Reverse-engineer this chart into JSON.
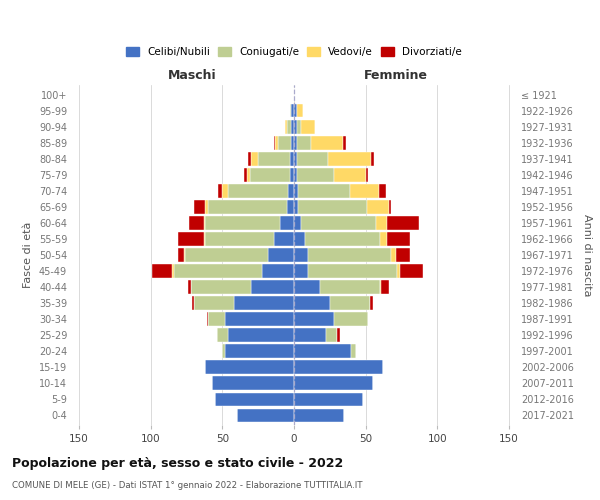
{
  "age_groups": [
    "0-4",
    "5-9",
    "10-14",
    "15-19",
    "20-24",
    "25-29",
    "30-34",
    "35-39",
    "40-44",
    "45-49",
    "50-54",
    "55-59",
    "60-64",
    "65-69",
    "70-74",
    "75-79",
    "80-84",
    "85-89",
    "90-94",
    "95-99",
    "100+"
  ],
  "birth_years": [
    "2017-2021",
    "2012-2016",
    "2007-2011",
    "2002-2006",
    "1997-2001",
    "1992-1996",
    "1987-1991",
    "1982-1986",
    "1977-1981",
    "1972-1976",
    "1967-1971",
    "1962-1966",
    "1957-1961",
    "1952-1956",
    "1947-1951",
    "1942-1946",
    "1937-1941",
    "1932-1936",
    "1927-1931",
    "1922-1926",
    "≤ 1921"
  ],
  "maschi": {
    "celibi": [
      40,
      55,
      57,
      62,
      48,
      46,
      48,
      42,
      30,
      22,
      18,
      14,
      10,
      5,
      4,
      3,
      3,
      2,
      2,
      2,
      0
    ],
    "coniugati": [
      0,
      0,
      0,
      0,
      2,
      8,
      12,
      28,
      42,
      62,
      58,
      48,
      52,
      55,
      42,
      28,
      22,
      9,
      3,
      1,
      0
    ],
    "vedovi": [
      0,
      0,
      0,
      0,
      0,
      0,
      0,
      0,
      0,
      1,
      1,
      1,
      1,
      2,
      4,
      2,
      5,
      2,
      1,
      0,
      0
    ],
    "divorziati": [
      0,
      0,
      0,
      0,
      0,
      0,
      1,
      1,
      2,
      14,
      4,
      18,
      10,
      8,
      3,
      2,
      2,
      1,
      0,
      0,
      0
    ]
  },
  "femmine": {
    "nubili": [
      35,
      48,
      55,
      62,
      40,
      22,
      28,
      25,
      18,
      10,
      10,
      8,
      5,
      3,
      3,
      2,
      2,
      2,
      2,
      2,
      0
    ],
    "coniugate": [
      0,
      0,
      0,
      0,
      3,
      8,
      24,
      28,
      42,
      62,
      58,
      52,
      52,
      48,
      36,
      26,
      22,
      10,
      3,
      0,
      0
    ],
    "vedove": [
      0,
      0,
      0,
      0,
      0,
      0,
      0,
      0,
      1,
      2,
      3,
      5,
      8,
      15,
      20,
      22,
      30,
      22,
      10,
      4,
      0
    ],
    "divorziate": [
      0,
      0,
      0,
      0,
      0,
      2,
      0,
      2,
      5,
      16,
      10,
      16,
      22,
      2,
      5,
      2,
      2,
      2,
      0,
      0,
      0
    ]
  },
  "colors": {
    "celibi": "#4472C4",
    "coniugati": "#BFCE93",
    "vedovi": "#FFD966",
    "divorziati": "#C00000"
  },
  "xlim": 155,
  "xticks": [
    -150,
    -100,
    -50,
    0,
    50,
    100,
    150
  ],
  "title": "Popolazione per età, sesso e stato civile - 2022",
  "subtitle": "COMUNE DI MELE (GE) - Dati ISTAT 1° gennaio 2022 - Elaborazione TUTTITALIA.IT",
  "ylabel_left": "Fasce di età",
  "ylabel_right": "Anni di nascita",
  "xlabel_maschi": "Maschi",
  "xlabel_femmine": "Femmine",
  "bg_color": "#ffffff",
  "grid_color": "#cccccc",
  "legend_labels": [
    "Celibi/Nubili",
    "Coniugati/e",
    "Vedovi/e",
    "Divorziati/e"
  ]
}
